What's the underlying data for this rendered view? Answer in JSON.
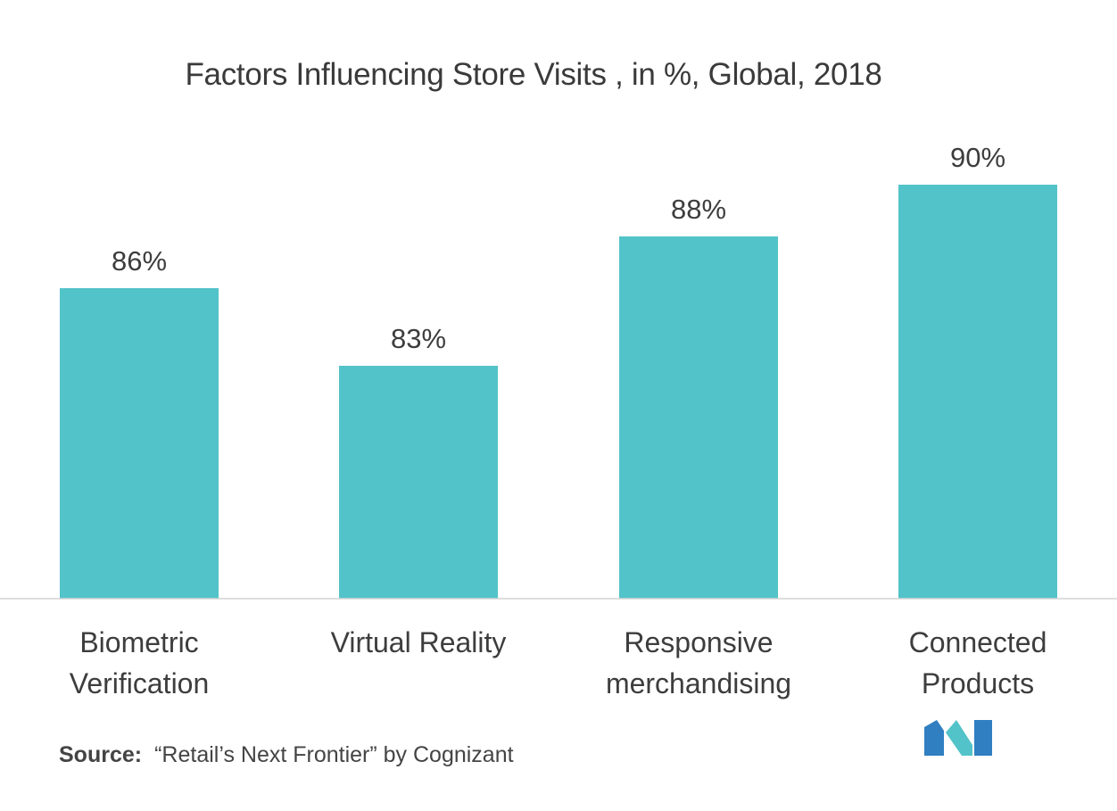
{
  "chart_data": {
    "type": "bar",
    "title": "Factors Influencing Store Visits , in %, Global, 2018",
    "xlabel": "",
    "ylabel": "",
    "categories": [
      [
        "Biometric",
        "Verification"
      ],
      [
        "Virtual Reality"
      ],
      [
        "Responsive",
        "merchandising"
      ],
      [
        "Connected",
        "Products"
      ]
    ],
    "values": [
      86,
      83,
      88,
      90
    ],
    "data_labels": [
      "86%",
      "83%",
      "88%",
      "90%"
    ],
    "ylim": [
      74,
      92
    ],
    "grid": false,
    "legend": "none",
    "bar_color": "#52c3c9"
  },
  "source": {
    "label": "Source:",
    "text": "“Retail’s Next Frontier” by Cognizant"
  },
  "logo": {
    "icon": "company-logo-icon",
    "colors": [
      "#2f7fc1",
      "#52c3c9"
    ]
  }
}
